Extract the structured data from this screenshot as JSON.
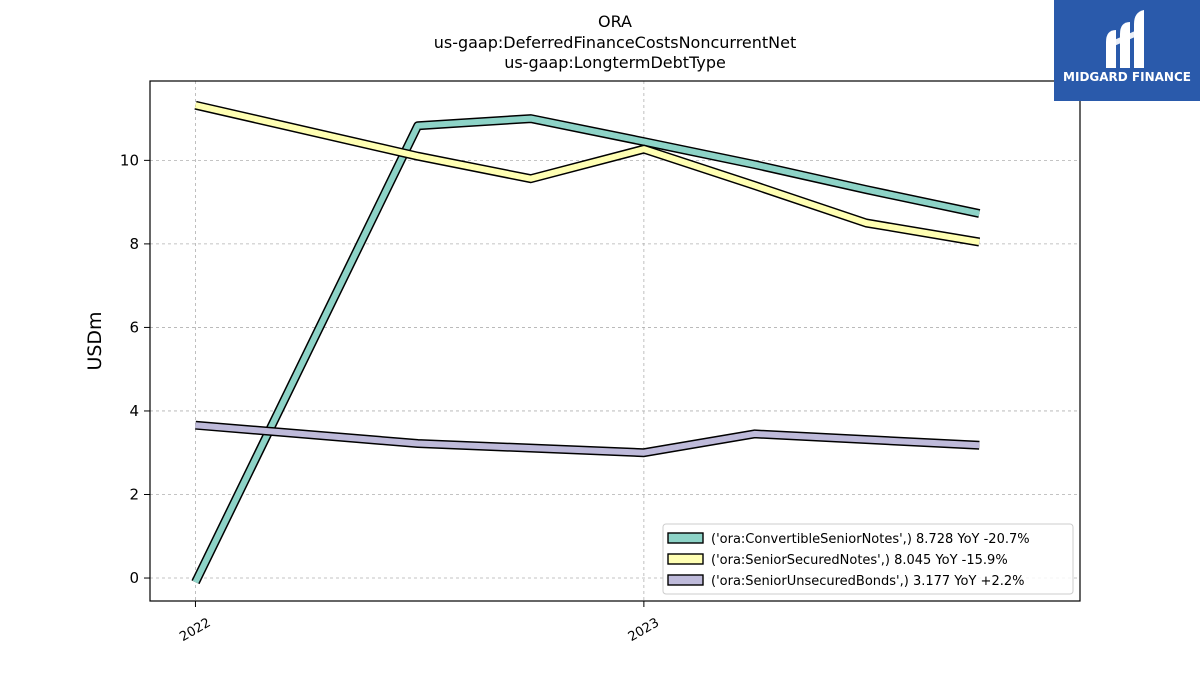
{
  "chart_data": {
    "type": "line",
    "title_lines": [
      "ORA",
      "us-gaap:DeferredFinanceCostsNoncurrentNet",
      "us-gaap:LongtermDebtType"
    ],
    "ylabel": "USDm",
    "xlabel": "",
    "ylim": [
      -0.55,
      11.9
    ],
    "yticks": [
      0,
      2,
      4,
      6,
      8,
      10
    ],
    "xlim": [
      "2021-11-25",
      "2023-12-22"
    ],
    "xticks": [
      {
        "label": "2022",
        "date": "2022-01-01"
      },
      {
        "label": "2023",
        "date": "2023-01-01"
      }
    ],
    "grid": true,
    "legend_position": "lower right",
    "series": [
      {
        "name": "('ora:ConvertibleSeniorNotes',) 8.728 YoY -20.7%",
        "color": "#8dd3c7",
        "points": [
          {
            "x": "2022-01-01",
            "y": -0.1
          },
          {
            "x": "2022-07-01",
            "y": 10.83
          },
          {
            "x": "2022-10-01",
            "y": 11.0
          },
          {
            "x": "2023-01-01",
            "y": 10.45
          },
          {
            "x": "2023-04-01",
            "y": 9.9
          },
          {
            "x": "2023-07-01",
            "y": 9.3
          },
          {
            "x": "2023-10-01",
            "y": 8.728
          }
        ]
      },
      {
        "name": "('ora:SeniorSecuredNotes',) 8.045 YoY -15.9%",
        "color": "#ffffb3",
        "points": [
          {
            "x": "2022-01-01",
            "y": 11.32
          },
          {
            "x": "2022-07-01",
            "y": 10.1
          },
          {
            "x": "2022-10-01",
            "y": 9.56
          },
          {
            "x": "2023-01-01",
            "y": 10.27
          },
          {
            "x": "2023-04-01",
            "y": 9.4
          },
          {
            "x": "2023-07-01",
            "y": 8.5
          },
          {
            "x": "2023-10-01",
            "y": 8.045
          }
        ]
      },
      {
        "name": "('ora:SeniorUnsecuredBonds',) 3.177 YoY +2.2%",
        "color": "#bebada",
        "points": [
          {
            "x": "2022-01-01",
            "y": 3.66
          },
          {
            "x": "2022-07-01",
            "y": 3.22
          },
          {
            "x": "2023-01-01",
            "y": 3.0
          },
          {
            "x": "2023-04-01",
            "y": 3.45
          },
          {
            "x": "2023-10-01",
            "y": 3.177
          }
        ]
      }
    ]
  },
  "logo": {
    "text": "MIDGARD FINANCE",
    "background": "#2a5aab"
  }
}
